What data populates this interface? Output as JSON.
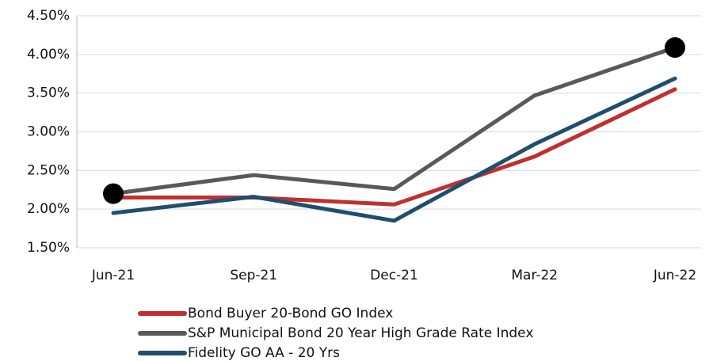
{
  "chart_data": {
    "type": "line",
    "categories": [
      "Jun-21",
      "Sep-21",
      "Dec-21",
      "Mar-22",
      "Jun-22"
    ],
    "series": [
      {
        "name": "Bond Buyer 20-Bond GO Index",
        "color": "#c0302f",
        "values": [
          2.15,
          2.15,
          2.06,
          2.68,
          3.55
        ]
      },
      {
        "name": "S&P Municipal Bond 20 Year High Grade Rate Index",
        "color": "#595959",
        "values": [
          2.2,
          2.44,
          2.26,
          3.47,
          4.09
        ],
        "markers": [
          0,
          4
        ]
      },
      {
        "name": "Fidelity GO AA - 20 Yrs",
        "color": "#1f4e6e",
        "values": [
          1.95,
          2.16,
          1.85,
          2.84,
          3.69
        ]
      }
    ],
    "ylim": [
      1.5,
      4.5
    ],
    "yticks": [
      {
        "value": 1.5,
        "label": "1.50%"
      },
      {
        "value": 2,
        "label": "2.00%"
      },
      {
        "value": 2.5,
        "label": "2.50%"
      },
      {
        "value": 3,
        "label": "3.00%"
      },
      {
        "value": 3.5,
        "label": "3.50%"
      },
      {
        "value": 4,
        "label": "4.00%"
      },
      {
        "value": 4.5,
        "label": "4.50%"
      }
    ],
    "grid": true,
    "legend": "bottom"
  }
}
